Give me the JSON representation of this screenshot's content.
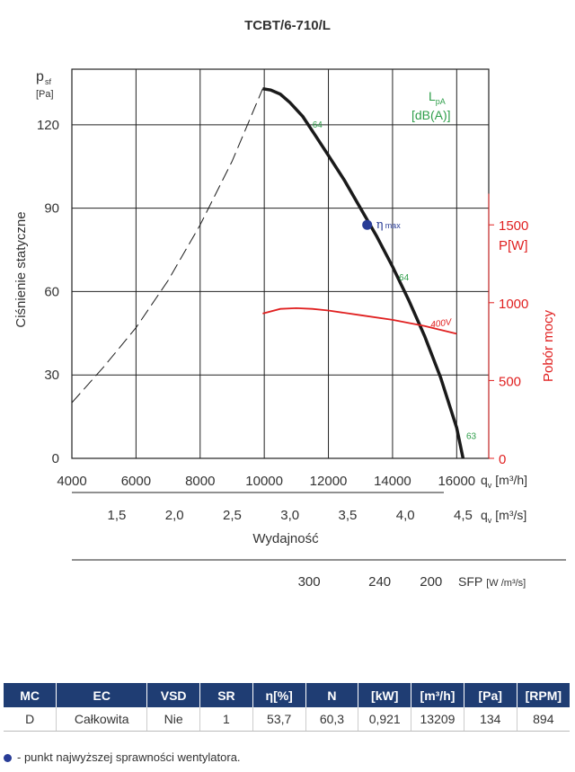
{
  "chart_data": {
    "type": "line",
    "title": "TCBT/6-710/L",
    "ylabel_symbol": "p",
    "ylabel_sub": "sf",
    "ylabel_unit": "[Pa]",
    "ylabel": "Ciśnienie statyczne",
    "ylim": [
      0,
      140
    ],
    "yticks": [
      "0",
      "30",
      "60",
      "90",
      "120"
    ],
    "xlabel": "Wydajność",
    "xlim": [
      4000,
      17000
    ],
    "xticks_m3h": [
      "4000",
      "6000",
      "8000",
      "10000",
      "12000",
      "14000",
      "16000"
    ],
    "x_unit_m3h": "q",
    "x_unit_m3h_sub": "v",
    "x_unit_m3h_tail": "[m³/h]",
    "xticks_m3s": [
      "1,5",
      "2,0",
      "2,5",
      "3,0",
      "3,5",
      "4,0",
      "4,5"
    ],
    "x_unit_m3s": "q",
    "x_unit_m3s_sub": "v",
    "x_unit_m3s_tail": "[m³/s]",
    "sfp_ticks": [
      {
        "label": "300",
        "x": 11400
      },
      {
        "label": "240",
        "x": 13600
      },
      {
        "label": "200",
        "x": 15200
      }
    ],
    "sfp_label": "SFP",
    "sfp_unit": "[W /m³/s]",
    "power_label": "P[W]",
    "power_axis_label": "Pobór mocy",
    "power_ticks": [
      "0",
      "500",
      "1000",
      "1500"
    ],
    "power_ylim": [
      0,
      2000
    ],
    "lpa_label": "L",
    "lpa_sub": "pA",
    "lpa_unit": "[dB(A)]",
    "series": [
      {
        "kind": "pressure",
        "color": "#1a1a1a",
        "x": [
          9950,
          10200,
          10500,
          10800,
          11200,
          11600,
          12000,
          12500,
          13000,
          13500,
          14000,
          14500,
          15000,
          15500,
          16000,
          16200
        ],
        "y": [
          133,
          132.5,
          131,
          128,
          123,
          116,
          109,
          100,
          90,
          80,
          69,
          57,
          44,
          29,
          11,
          0
        ]
      },
      {
        "kind": "stall",
        "color": "#1a1a1a",
        "x": [
          4000,
          5000,
          6000,
          7000,
          8000,
          9000,
          9950
        ],
        "y": [
          20,
          33,
          47,
          64,
          84,
          107,
          133
        ]
      },
      {
        "kind": "power",
        "color": "#e02020",
        "x": [
          9950,
          10500,
          11000,
          11500,
          12000,
          13000,
          14000,
          15000,
          16000
        ],
        "y": [
          930,
          960,
          965,
          960,
          950,
          920,
          890,
          850,
          800
        ]
      }
    ],
    "eta_max_point": {
      "x": 13209,
      "y": 84,
      "label": "η",
      "sub": "max",
      "color": "#283c96"
    },
    "power_series_label": "400V",
    "sound_labels": [
      {
        "text": "64",
        "x": 11500,
        "y": 119
      },
      {
        "text": "64",
        "x": 14200,
        "y": 64
      },
      {
        "text": "63",
        "x": 16300,
        "y": 7
      }
    ]
  },
  "table": {
    "headers": [
      "MC",
      "EC",
      "VSD",
      "SR",
      "η[%]",
      "N",
      "[kW]",
      "[m³/h]",
      "[Pa]",
      "[RPM]"
    ],
    "row": [
      "D",
      "Całkowita",
      "Nie",
      "1",
      "53,7",
      "60,3",
      "0,921",
      "13209",
      "134",
      "894"
    ]
  },
  "footnote": "- punkt najwyższej sprawności wentylatora."
}
